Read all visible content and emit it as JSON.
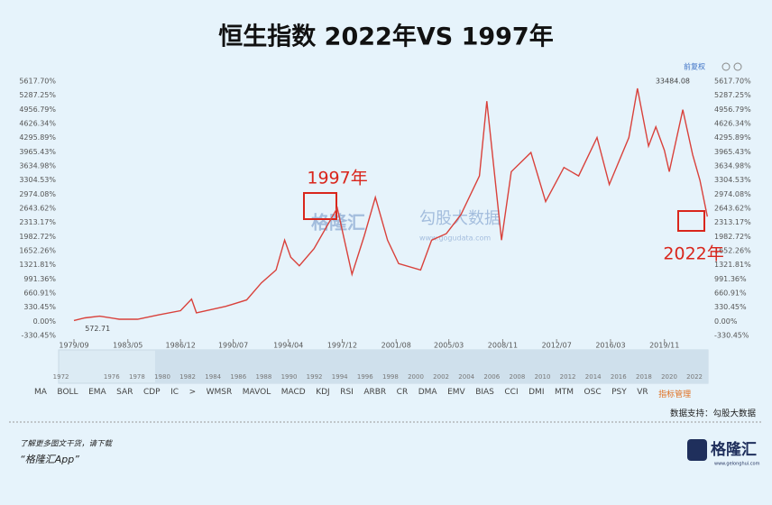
{
  "chart_data": {
    "type": "line",
    "title": "恒生指数 2022年VS 1997年",
    "adjust_label": "前复权",
    "x": [
      "1979/09",
      "1980/06",
      "1981/06",
      "1982/10",
      "1984/01",
      "1985/06",
      "1986/12",
      "1987/09",
      "1988/01",
      "1990/01",
      "1991/06",
      "1992/06",
      "1993/06",
      "1994/01",
      "1994/06",
      "1995/01",
      "1996/01",
      "1997/08",
      "1998/08",
      "1999/06",
      "2000/03",
      "2001/01",
      "2001/10",
      "2003/04",
      "2004/01",
      "2005/01",
      "2006/01",
      "2007/04",
      "2007/10",
      "2008/10",
      "2009/06",
      "2010/10",
      "2011/10",
      "2013/01",
      "2014/01",
      "2015/04",
      "2016/02",
      "2017/06",
      "2018/01",
      "2018/10",
      "2019/04",
      "2019/11",
      "2020/03",
      "2021/02",
      "2021/10",
      "2022/04",
      "2022/10"
    ],
    "series": [
      {
        "name": "恒生指数",
        "color": "#d9413b",
        "values": [
          20,
          80,
          120,
          50,
          50,
          150,
          250,
          520,
          200,
          350,
          500,
          900,
          1200,
          1900,
          1500,
          1300,
          1700,
          2650,
          1100,
          2000,
          2900,
          1900,
          1350,
          1200,
          1900,
          2050,
          2500,
          3400,
          5150,
          1900,
          3500,
          3950,
          2800,
          3600,
          3400,
          4300,
          3200,
          4300,
          5450,
          4100,
          4550,
          4000,
          3500,
          4950,
          3900,
          3300,
          2450
        ]
      }
    ],
    "ylim": [
      -330.45,
      5617.7
    ],
    "yticks": [
      {
        "value": -330.45,
        "label": "-330.45%"
      },
      {
        "value": 0,
        "label": "0.00%"
      },
      {
        "value": 330.45,
        "label": "330.45%"
      },
      {
        "value": 660.91,
        "label": "660.91%"
      },
      {
        "value": 991.36,
        "label": "991.36%"
      },
      {
        "value": 1321.81,
        "label": "1321.81%"
      },
      {
        "value": 1652.26,
        "label": "1652.26%"
      },
      {
        "value": 1982.72,
        "label": "1982.72%"
      },
      {
        "value": 2313.17,
        "label": "2313.17%"
      },
      {
        "value": 2643.62,
        "label": "2643.62%"
      },
      {
        "value": 2974.08,
        "label": "2974.08%"
      },
      {
        "value": 3304.53,
        "label": "3304.53%"
      },
      {
        "value": 3634.98,
        "label": "3634.98%"
      },
      {
        "value": 3965.43,
        "label": "3965.43%"
      },
      {
        "value": 4295.89,
        "label": "4295.89%"
      },
      {
        "value": 4626.34,
        "label": "4626.34%"
      },
      {
        "value": 4956.79,
        "label": "4956.79%"
      },
      {
        "value": 5287.25,
        "label": "5287.25%"
      },
      {
        "value": 5617.7,
        "label": "5617.70%"
      }
    ],
    "xticks": [
      "1979/09",
      "1983/05",
      "1986/12",
      "1990/07",
      "1994/04",
      "1997/12",
      "2001/08",
      "2005/03",
      "2008/11",
      "2012/07",
      "2016/03",
      "2019/11"
    ],
    "grid": false,
    "annotations": [
      {
        "text": "33484.08",
        "x": "2018/01"
      },
      {
        "text": "572.71",
        "x": "1980/06"
      },
      {
        "text": "1997年",
        "x": "1997/08"
      },
      {
        "text": "2022年",
        "x": "2022/04"
      }
    ],
    "navigator_years": [
      "1972",
      "1976",
      "1978",
      "1980",
      "1982",
      "1984",
      "1986",
      "1988",
      "1990",
      "1992",
      "1994",
      "1996",
      "1998",
      "2000",
      "2002",
      "2004",
      "2006",
      "2008",
      "2010",
      "2012",
      "2014",
      "2016",
      "2018",
      "2020",
      "2022"
    ],
    "watermark": [
      "格隆汇",
      "勾股大数据",
      "www.gogudata.com"
    ]
  },
  "indicators": [
    "MA",
    "BOLL",
    "EMA",
    "SAR",
    "CDP",
    "IC",
    ">",
    "WMSR",
    "MAVOL",
    "MACD",
    "KDJ",
    "RSI",
    "ARBR",
    "CR",
    "DMA",
    "EMV",
    "BIAS",
    "CCI",
    "DMI",
    "MTM",
    "OSC",
    "PSY",
    "VR",
    "指标管理"
  ],
  "data_source": "数据支持：勾股大数据",
  "footer": {
    "line1": "了解更多图文干货，请下载",
    "line2": "“格隆汇App”",
    "logo": "格隆汇",
    "url": "www.gelonghui.com"
  }
}
